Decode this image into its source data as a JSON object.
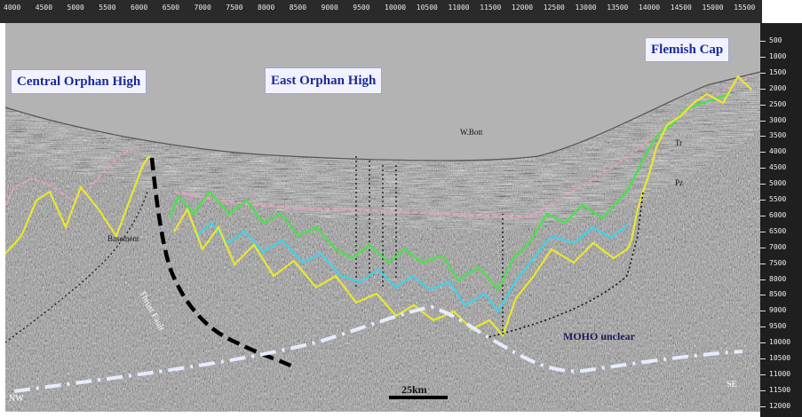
{
  "figure": {
    "regions": {
      "central": "Central Orphan High",
      "east": "East  Orphan  High",
      "flemish": "Flemish Cap"
    },
    "water_label": "W.Bott",
    "moho_label": "MOHO unclear",
    "fault_label": "Thrust Fault",
    "basement_label": "Basement",
    "scale_label": "25km",
    "left_end": "NW",
    "right_end": "SE",
    "side_marks": [
      "Tr",
      "Pz"
    ]
  },
  "right_axis": {
    "labels": [
      "500",
      "1000",
      "1500",
      "2000",
      "2500",
      "3000",
      "3500",
      "4000",
      "4500",
      "5000",
      "5500",
      "6000",
      "6500",
      "7000",
      "7500",
      "8000",
      "8500",
      "9000",
      "9500",
      "10000",
      "10500",
      "11000",
      "11500",
      "12000"
    ]
  },
  "top_ruler": {
    "labels": [
      "4000",
      "4500",
      "5000",
      "5500",
      "6000",
      "6500",
      "7000",
      "7500",
      "8000",
      "8500",
      "9000",
      "9500",
      "10000",
      "10500",
      "11000",
      "11500",
      "12000",
      "12500",
      "13000",
      "13500",
      "14000",
      "14500",
      "15000",
      "15500"
    ]
  },
  "colors": {
    "water": "#b3b3b3",
    "seismic_bg": "#aaaaaa",
    "horizon_yellow": "#e8e830",
    "horizon_green": "#4ee04e",
    "horizon_cyan": "#3fd3e8",
    "horizon_pink": "#e8a0c0",
    "moho": "#e6ecff",
    "fault": "#000000",
    "label_text": "#1a2a9a"
  }
}
